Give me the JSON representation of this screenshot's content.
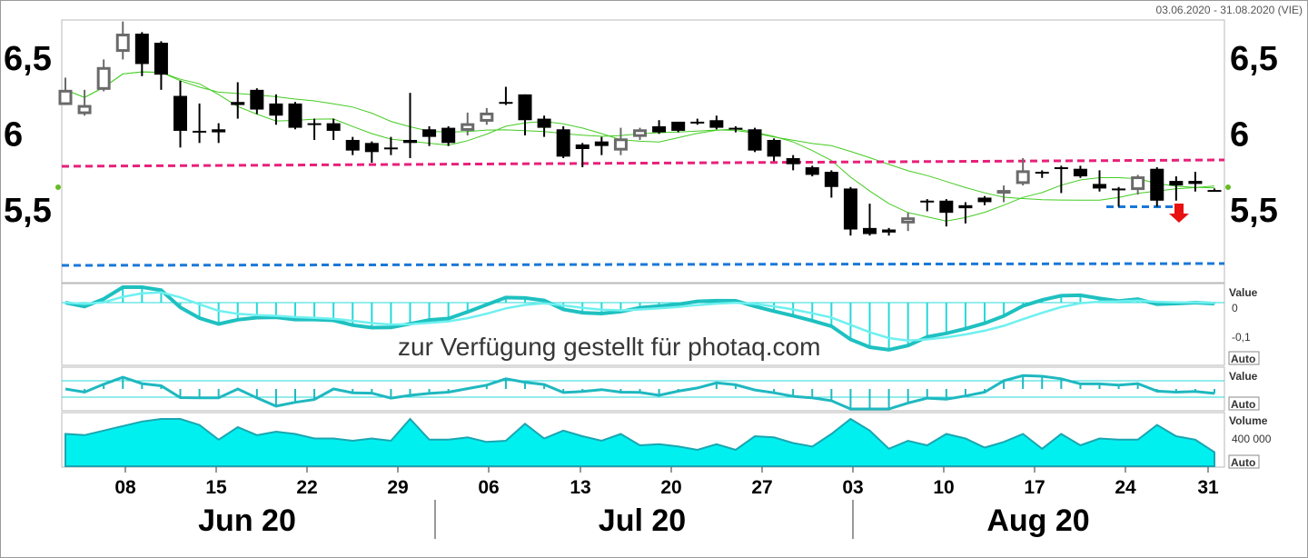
{
  "header": {
    "date_range": "03.06.2020 - 31.08.2020 (VIE)"
  },
  "watermark": "zur Verfügung gestellt für photaq.com",
  "price_panel": {
    "y_ticks": [
      "6,5",
      "6",
      "5,5"
    ],
    "resistance": 5.81,
    "support": 5.13,
    "breakdown_target": 5.52
  },
  "macd_panel": {
    "label": "Value",
    "ticks": [
      "0",
      "-0,1"
    ],
    "auto": "Auto"
  },
  "momentum_panel": {
    "label": "Value",
    "auto": "Auto"
  },
  "volume_panel": {
    "label": "Volume",
    "tick": "400 000",
    "auto": "Auto"
  },
  "x_axis": {
    "day_ticks": [
      "08",
      "15",
      "22",
      "29",
      "06",
      "13",
      "20",
      "27",
      "03",
      "10",
      "17",
      "24",
      "31"
    ],
    "months": [
      "Jun 20",
      "Jul 20",
      "Aug 20"
    ]
  },
  "colors": {
    "resistance": "#e8207a",
    "support": "#1a78d8",
    "macd": "#28d8d8",
    "volume_fill": "#00f0f0",
    "ma": "#44cc22",
    "arrow": "#e81010"
  },
  "chart_data": {
    "type": "candlestick",
    "title": "",
    "x_range": [
      "2020-06-03",
      "2020-08-31"
    ],
    "ylim": [
      5.02,
      6.75
    ],
    "candles": [
      {
        "o": 6.19,
        "h": 6.37,
        "l": 6.19,
        "c": 6.29,
        "bull": true
      },
      {
        "o": 6.13,
        "h": 6.29,
        "l": 6.12,
        "c": 6.19,
        "bull": true
      },
      {
        "o": 6.29,
        "h": 6.49,
        "l": 6.28,
        "c": 6.44,
        "bull": true
      },
      {
        "o": 6.54,
        "h": 6.74,
        "l": 6.49,
        "c": 6.66,
        "bull": true
      },
      {
        "o": 6.66,
        "h": 6.67,
        "l": 6.38,
        "c": 6.46,
        "bull": false
      },
      {
        "o": 6.6,
        "h": 6.61,
        "l": 6.29,
        "c": 6.39,
        "bull": false
      },
      {
        "o": 6.25,
        "h": 6.35,
        "l": 5.91,
        "c": 6.02,
        "bull": false
      },
      {
        "o": 6.02,
        "h": 6.2,
        "l": 5.94,
        "c": 6.01,
        "bull": false
      },
      {
        "o": 6.03,
        "h": 6.07,
        "l": 5.94,
        "c": 6.01,
        "bull": false
      },
      {
        "o": 6.21,
        "h": 6.34,
        "l": 6.1,
        "c": 6.19,
        "bull": false
      },
      {
        "o": 6.29,
        "h": 6.3,
        "l": 6.13,
        "c": 6.16,
        "bull": false
      },
      {
        "o": 6.2,
        "h": 6.26,
        "l": 6.06,
        "c": 6.12,
        "bull": false
      },
      {
        "o": 6.2,
        "h": 6.21,
        "l": 6.03,
        "c": 6.04,
        "bull": false
      },
      {
        "o": 6.07,
        "h": 6.1,
        "l": 5.96,
        "c": 6.06,
        "bull": false
      },
      {
        "o": 6.07,
        "h": 6.1,
        "l": 5.96,
        "c": 6.02,
        "bull": false
      },
      {
        "o": 5.96,
        "h": 5.98,
        "l": 5.86,
        "c": 5.89,
        "bull": false
      },
      {
        "o": 5.94,
        "h": 5.95,
        "l": 5.81,
        "c": 5.88,
        "bull": false
      },
      {
        "o": 5.91,
        "h": 5.98,
        "l": 5.86,
        "c": 5.9,
        "bull": false
      },
      {
        "o": 5.94,
        "h": 6.27,
        "l": 5.84,
        "c": 5.96,
        "bull": false
      },
      {
        "o": 6.03,
        "h": 6.05,
        "l": 5.92,
        "c": 5.98,
        "bull": false
      },
      {
        "o": 6.04,
        "h": 6.05,
        "l": 5.92,
        "c": 5.94,
        "bull": false
      },
      {
        "o": 6.02,
        "h": 6.14,
        "l": 5.99,
        "c": 6.07,
        "bull": true
      },
      {
        "o": 6.08,
        "h": 6.17,
        "l": 6.06,
        "c": 6.14,
        "bull": true
      },
      {
        "o": 6.2,
        "h": 6.31,
        "l": 6.19,
        "c": 6.21,
        "bull": false
      },
      {
        "o": 6.26,
        "h": 6.26,
        "l": 5.99,
        "c": 6.09,
        "bull": false
      },
      {
        "o": 6.1,
        "h": 6.12,
        "l": 5.98,
        "c": 6.04,
        "bull": false
      },
      {
        "o": 6.03,
        "h": 6.05,
        "l": 5.84,
        "c": 5.85,
        "bull": false
      },
      {
        "o": 5.93,
        "h": 5.94,
        "l": 5.78,
        "c": 5.9,
        "bull": false
      },
      {
        "o": 5.95,
        "h": 5.98,
        "l": 5.86,
        "c": 5.92,
        "bull": false
      },
      {
        "o": 5.89,
        "h": 6.04,
        "l": 5.86,
        "c": 5.97,
        "bull": true
      },
      {
        "o": 5.98,
        "h": 6.04,
        "l": 5.96,
        "c": 6.03,
        "bull": true
      },
      {
        "o": 6.05,
        "h": 6.09,
        "l": 6.0,
        "c": 6.01,
        "bull": false
      },
      {
        "o": 6.08,
        "h": 6.08,
        "l": 6.01,
        "c": 6.02,
        "bull": false
      },
      {
        "o": 6.08,
        "h": 6.1,
        "l": 6.06,
        "c": 6.07,
        "bull": false
      },
      {
        "o": 6.09,
        "h": 6.12,
        "l": 6.03,
        "c": 6.04,
        "bull": false
      },
      {
        "o": 6.04,
        "h": 6.05,
        "l": 6.01,
        "c": 6.03,
        "bull": false
      },
      {
        "o": 6.03,
        "h": 6.04,
        "l": 5.88,
        "c": 5.89,
        "bull": false
      },
      {
        "o": 5.96,
        "h": 5.97,
        "l": 5.82,
        "c": 5.85,
        "bull": false
      },
      {
        "o": 5.84,
        "h": 5.86,
        "l": 5.76,
        "c": 5.8,
        "bull": false
      },
      {
        "o": 5.78,
        "h": 5.79,
        "l": 5.72,
        "c": 5.73,
        "bull": false
      },
      {
        "o": 5.75,
        "h": 5.76,
        "l": 5.58,
        "c": 5.65,
        "bull": false
      },
      {
        "o": 5.64,
        "h": 5.65,
        "l": 5.33,
        "c": 5.37,
        "bull": false
      },
      {
        "o": 5.38,
        "h": 5.54,
        "l": 5.33,
        "c": 5.34,
        "bull": false
      },
      {
        "o": 5.37,
        "h": 5.38,
        "l": 5.33,
        "c": 5.35,
        "bull": false
      },
      {
        "o": 5.41,
        "h": 5.48,
        "l": 5.36,
        "c": 5.45,
        "bull": true
      },
      {
        "o": 5.55,
        "h": 5.57,
        "l": 5.49,
        "c": 5.56,
        "bull": false
      },
      {
        "o": 5.56,
        "h": 5.57,
        "l": 5.39,
        "c": 5.48,
        "bull": false
      },
      {
        "o": 5.53,
        "h": 5.55,
        "l": 5.41,
        "c": 5.51,
        "bull": false
      },
      {
        "o": 5.58,
        "h": 5.59,
        "l": 5.53,
        "c": 5.55,
        "bull": false
      },
      {
        "o": 5.61,
        "h": 5.66,
        "l": 5.55,
        "c": 5.63,
        "bull": true
      },
      {
        "o": 5.67,
        "h": 5.84,
        "l": 5.66,
        "c": 5.76,
        "bull": true
      },
      {
        "o": 5.74,
        "h": 5.76,
        "l": 5.71,
        "c": 5.75,
        "bull": false
      },
      {
        "o": 5.78,
        "h": 5.79,
        "l": 5.61,
        "c": 5.77,
        "bull": false
      },
      {
        "o": 5.77,
        "h": 5.79,
        "l": 5.71,
        "c": 5.72,
        "bull": false
      },
      {
        "o": 5.67,
        "h": 5.76,
        "l": 5.62,
        "c": 5.64,
        "bull": false
      },
      {
        "o": 5.64,
        "h": 5.65,
        "l": 5.52,
        "c": 5.63,
        "bull": false
      },
      {
        "o": 5.63,
        "h": 5.73,
        "l": 5.6,
        "c": 5.72,
        "bull": true
      },
      {
        "o": 5.77,
        "h": 5.78,
        "l": 5.52,
        "c": 5.56,
        "bull": false
      },
      {
        "o": 5.69,
        "h": 5.72,
        "l": 5.56,
        "c": 5.66,
        "bull": false
      },
      {
        "o": 5.69,
        "h": 5.75,
        "l": 5.62,
        "c": 5.67,
        "bull": false
      },
      {
        "o": 5.63,
        "h": 5.64,
        "l": 5.62,
        "c": 5.63,
        "bull": false
      }
    ],
    "volume_scale_ticks": [
      400000
    ],
    "macd_scale_ticks": [
      0,
      -0.1
    ]
  }
}
